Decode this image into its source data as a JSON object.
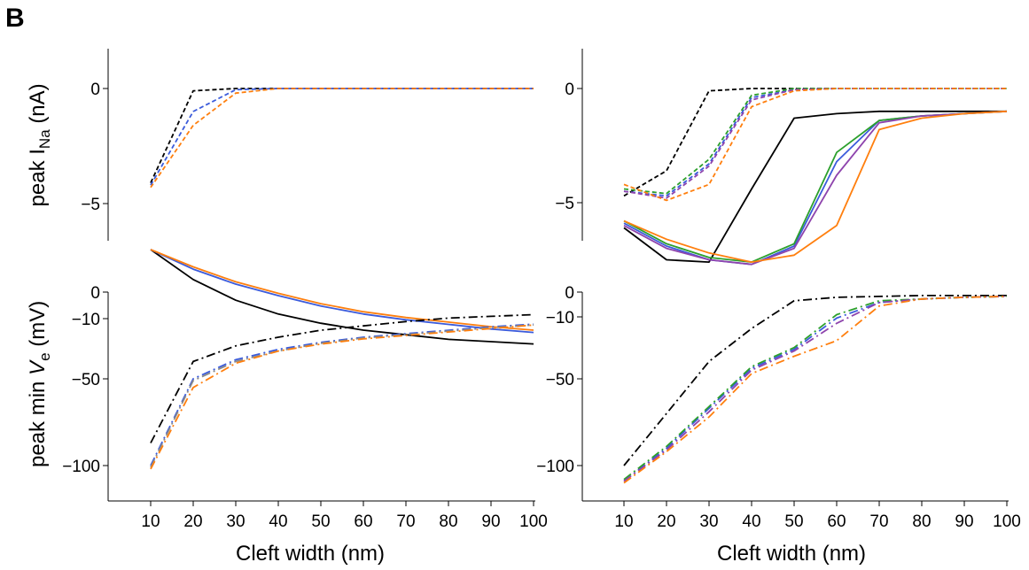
{
  "panel_label": "B",
  "y_labels": {
    "top": {
      "pre": "peak ",
      "main": "I",
      "sub": "Na",
      "post": " (nA)"
    },
    "bottom": {
      "pre": "peak min ",
      "main": "V",
      "sub": "e",
      "post": " (mV)"
    }
  },
  "x_label": "Cleft width (nm)",
  "colors": {
    "black": "#000000",
    "blue": "#3b5bdb",
    "green": "#2ca02c",
    "purple": "#8e44ad",
    "orange": "#ff7f0e",
    "gray": "#8a8a8a"
  },
  "chart_data": [
    {
      "type": "line",
      "panel": "top-left",
      "xlabel": "",
      "ylabel": "peak INa (nA)",
      "ylim": [
        -13.5,
        3.5
      ],
      "yticks": [
        0,
        -5,
        -10
      ],
      "ytick_labels": [
        "0",
        "-5",
        "-10"
      ],
      "xticks": [],
      "x": [
        10,
        20,
        30,
        40,
        50,
        60,
        70,
        80,
        90,
        100
      ],
      "series": [
        {
          "color": "black",
          "style": "dashed",
          "values": [
            -4.1,
            -0.1,
            0,
            0,
            0,
            0,
            0,
            0,
            0,
            0
          ]
        },
        {
          "color": "blue",
          "style": "dashed",
          "values": [
            -4.2,
            -1.0,
            -0.05,
            0,
            0,
            0,
            0,
            0,
            0,
            0
          ]
        },
        {
          "color": "orange",
          "style": "dashed",
          "values": [
            -4.3,
            -1.6,
            -0.2,
            0,
            0,
            0,
            0,
            0,
            0,
            0
          ]
        },
        {
          "color": "black",
          "style": "solid",
          "values": [
            -7.0,
            -8.3,
            -9.2,
            -9.8,
            -10.2,
            -10.5,
            -10.7,
            -10.9,
            -11.0,
            -11.1
          ]
        },
        {
          "color": "blue",
          "style": "solid",
          "values": [
            -7.0,
            -7.85,
            -8.5,
            -9.0,
            -9.45,
            -9.8,
            -10.05,
            -10.25,
            -10.45,
            -10.6
          ]
        },
        {
          "color": "orange",
          "style": "solid",
          "values": [
            -7.0,
            -7.75,
            -8.4,
            -8.9,
            -9.35,
            -9.7,
            -9.95,
            -10.15,
            -10.35,
            -10.5
          ]
        }
      ]
    },
    {
      "type": "line",
      "panel": "top-right",
      "xlabel": "",
      "ylabel": "",
      "ylim": [
        -13.5,
        3.5
      ],
      "yticks": [
        0,
        -5,
        -10
      ],
      "ytick_labels": [
        "0",
        "-5",
        "-10"
      ],
      "xticks": [],
      "x": [
        10,
        20,
        30,
        40,
        50,
        60,
        70,
        80,
        90,
        100
      ],
      "series": [
        {
          "color": "black",
          "style": "dashed",
          "values": [
            -4.7,
            -3.6,
            -0.1,
            0,
            0,
            0,
            0,
            0,
            0,
            0
          ]
        },
        {
          "color": "blue",
          "style": "dashed",
          "values": [
            -4.5,
            -4.7,
            -3.3,
            -0.4,
            -0.05,
            0,
            0,
            0,
            0,
            0
          ]
        },
        {
          "color": "green",
          "style": "dashed",
          "values": [
            -4.4,
            -4.6,
            -3.1,
            -0.3,
            0,
            0,
            0,
            0,
            0,
            0
          ]
        },
        {
          "color": "purple",
          "style": "dashed",
          "values": [
            -4.5,
            -4.8,
            -3.4,
            -0.5,
            -0.05,
            0,
            0,
            0,
            0,
            0
          ]
        },
        {
          "color": "orange",
          "style": "dashed",
          "values": [
            -4.2,
            -4.9,
            -4.2,
            -0.8,
            -0.1,
            0,
            0,
            0,
            0,
            0
          ]
        },
        {
          "color": "black",
          "style": "solid",
          "values": [
            -6.1,
            -7.5,
            -7.6,
            -4.4,
            -1.3,
            -1.1,
            -1.0,
            -1.0,
            -1.0,
            -1.0
          ]
        },
        {
          "color": "blue",
          "style": "solid",
          "values": [
            -5.9,
            -6.9,
            -7.5,
            -7.7,
            -6.9,
            -3.2,
            -1.4,
            -1.2,
            -1.1,
            -1.0
          ]
        },
        {
          "color": "green",
          "style": "solid",
          "values": [
            -5.8,
            -6.8,
            -7.4,
            -7.6,
            -6.8,
            -2.8,
            -1.4,
            -1.2,
            -1.1,
            -1.0
          ]
        },
        {
          "color": "purple",
          "style": "solid",
          "values": [
            -6.0,
            -7.0,
            -7.5,
            -7.7,
            -7.0,
            -3.8,
            -1.5,
            -1.2,
            -1.1,
            -1.0
          ]
        },
        {
          "color": "orange",
          "style": "solid",
          "values": [
            -5.8,
            -6.6,
            -7.2,
            -7.6,
            -7.3,
            -6.0,
            -1.8,
            -1.3,
            -1.1,
            -1.0
          ]
        }
      ]
    },
    {
      "type": "line",
      "panel": "bottom-left",
      "xlabel": "Cleft width (nm)",
      "ylabel": "peak min Ve (mV)",
      "ylim": [
        -120,
        0
      ],
      "yticks": [
        0,
        -50,
        -100
      ],
      "ytick_labels": [
        "0",
        "-50",
        "-100"
      ],
      "xticks": [
        10,
        20,
        30,
        40,
        50,
        60,
        70,
        80,
        90,
        100
      ],
      "x": [
        10,
        20,
        30,
        40,
        50,
        60,
        70,
        80,
        90,
        100
      ],
      "series": [
        {
          "color": "black",
          "style": "dashdot",
          "values": [
            -87,
            -40,
            -31,
            -26,
            -22,
            -19.5,
            -17,
            -15,
            -14,
            -13
          ]
        },
        {
          "color": "blue",
          "style": "dashdot",
          "values": [
            -100,
            -50,
            -39,
            -33,
            -29,
            -26,
            -24,
            -22,
            -20,
            -18.5
          ]
        },
        {
          "color": "gray",
          "style": "dashdot",
          "values": [
            -101,
            -51,
            -40,
            -34,
            -29.5,
            -26.5,
            -24.5,
            -22.5,
            -20.5,
            -19
          ]
        },
        {
          "color": "orange",
          "style": "dashdot",
          "values": [
            -102,
            -55,
            -41,
            -34,
            -30,
            -27,
            -25,
            -23,
            -21,
            -19
          ]
        }
      ]
    },
    {
      "type": "line",
      "panel": "bottom-right",
      "xlabel": "Cleft width (nm)",
      "ylabel": "",
      "ylim": [
        -120,
        0
      ],
      "yticks": [
        0,
        -50,
        -100
      ],
      "ytick_labels": [
        "0",
        "-50",
        "-100"
      ],
      "xticks": [
        10,
        20,
        30,
        40,
        50,
        60,
        70,
        80,
        90,
        100
      ],
      "x": [
        10,
        20,
        30,
        40,
        50,
        60,
        70,
        80,
        90,
        100
      ],
      "series": [
        {
          "color": "black",
          "style": "dashdot",
          "values": [
            -100,
            -70,
            -40,
            -21,
            -5,
            -3,
            -2.5,
            -2,
            -2,
            -2
          ]
        },
        {
          "color": "blue",
          "style": "dashdot",
          "values": [
            -109,
            -90,
            -67,
            -44,
            -33,
            -15,
            -6,
            -4,
            -3,
            -2.5
          ]
        },
        {
          "color": "green",
          "style": "dashdot",
          "values": [
            -108,
            -89,
            -66,
            -43,
            -32,
            -13,
            -5,
            -4,
            -3,
            -2.5
          ]
        },
        {
          "color": "purple",
          "style": "dashdot",
          "values": [
            -109,
            -91,
            -69,
            -45,
            -34,
            -18,
            -6,
            -4,
            -3,
            -2.5
          ]
        },
        {
          "color": "orange",
          "style": "dashdot",
          "values": [
            -110,
            -92,
            -72,
            -47,
            -37,
            -28,
            -8,
            -4,
            -3,
            -2.5
          ]
        }
      ]
    }
  ]
}
